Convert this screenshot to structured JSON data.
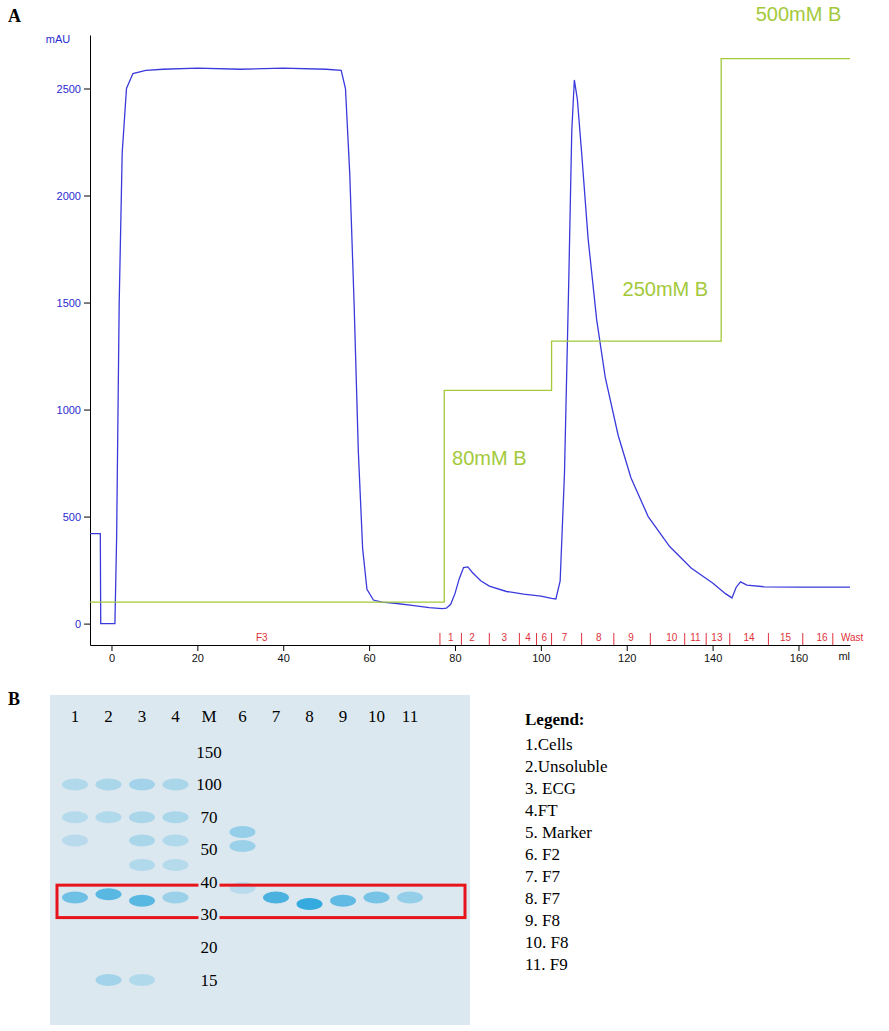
{
  "panels": [
    "A",
    "B"
  ],
  "chart_data": {
    "type": "line",
    "ylabel": "mAU",
    "xlabel": "ml",
    "xlim": [
      -5,
      172
    ],
    "xticks": [
      0,
      20,
      40,
      60,
      80,
      100,
      120,
      140,
      160
    ],
    "ylim": [
      -100,
      2750
    ],
    "yticks": [
      0,
      500,
      1000,
      1500,
      2000,
      2500
    ],
    "grid": false,
    "series": [
      {
        "color": "#3a3adc",
        "line_style": "solid",
        "x": [
          -5,
          -2.6,
          -2.5,
          0.8,
          1.2,
          1.8,
          2.5,
          3.5,
          5,
          8,
          12,
          20,
          30,
          40,
          50,
          53.5,
          54.5,
          55.5,
          56.5,
          57.5,
          58.5,
          59.5,
          61,
          63,
          66,
          70,
          74,
          77,
          78,
          79,
          80,
          81,
          82,
          83,
          84,
          86,
          88,
          92,
          96,
          100,
          102.5,
          103.5,
          104.5,
          105.5,
          106.5,
          107.2,
          107.8,
          108.5,
          109.5,
          111,
          113,
          115,
          118,
          121,
          125,
          130,
          135,
          140,
          143,
          144.5,
          145.5,
          146.5,
          148,
          152,
          160,
          172
        ],
        "values": [
          420,
          420,
          0,
          0,
          400,
          1500,
          2200,
          2500,
          2570,
          2585,
          2590,
          2595,
          2590,
          2595,
          2590,
          2585,
          2500,
          2100,
          1500,
          800,
          350,
          160,
          110,
          100,
          95,
          85,
          75,
          70,
          72,
          90,
          140,
          210,
          262,
          265,
          240,
          200,
          175,
          150,
          138,
          128,
          118,
          115,
          200,
          700,
          1600,
          2300,
          2540,
          2450,
          2200,
          1800,
          1420,
          1150,
          880,
          680,
          500,
          360,
          260,
          190,
          140,
          120,
          170,
          195,
          180,
          172,
          170,
          170
        ]
      },
      {
        "color": "#a3c93a",
        "line_style": "solid",
        "x": [
          -5,
          77.5,
          77.5,
          102.5,
          102.5,
          142,
          142,
          172
        ],
        "values": [
          100,
          100,
          1090,
          1090,
          1320,
          1320,
          2640,
          2640
        ]
      }
    ],
    "annotations": [
      {
        "text": "80mM B",
        "x": 88,
        "y": 765
      },
      {
        "text": "250mM B",
        "x": 129,
        "y": 1555
      },
      {
        "text": "500mM B",
        "x": 160,
        "y": 2840
      }
    ],
    "fractions": {
      "color": "#e0303a",
      "labels": [
        "F3",
        "1",
        "2",
        "3",
        "4",
        "6",
        "7",
        "8",
        "9",
        "10",
        "11",
        "13",
        "14",
        "15",
        "16",
        "Wast"
      ],
      "x": [
        35,
        79,
        84,
        91.5,
        97,
        100.8,
        105.5,
        113.5,
        121,
        130.5,
        136,
        141,
        148.5,
        157,
        165.5,
        172.5
      ],
      "edges": [
        76.5,
        81.5,
        88,
        95,
        99,
        102.5,
        109.5,
        117,
        125.5,
        133.5,
        138.5,
        144,
        153,
        161,
        168
      ]
    }
  },
  "gel": {
    "markers": [
      150,
      100,
      70,
      50,
      40,
      30,
      20,
      15
    ],
    "marker_lane": 4,
    "band_color": "#35aade",
    "highlight": [
      29,
      39
    ],
    "highlight_color": "#e8141c",
    "lanes": [
      {
        "label": "1",
        "bands": [
          {
            "kda": 35,
            "intensity": 0.6
          },
          {
            "kda": 100,
            "intensity": 0.15
          },
          {
            "kda": 70,
            "intensity": 0.12
          },
          {
            "kda": 55,
            "intensity": 0.1
          }
        ]
      },
      {
        "label": "2",
        "bands": [
          {
            "kda": 36,
            "intensity": 0.75
          },
          {
            "kda": 100,
            "intensity": 0.2
          },
          {
            "kda": 70,
            "intensity": 0.15
          },
          {
            "kda": 15,
            "intensity": 0.25
          }
        ]
      },
      {
        "label": "3",
        "bands": [
          {
            "kda": 34,
            "intensity": 0.75
          },
          {
            "kda": 100,
            "intensity": 0.25
          },
          {
            "kda": 70,
            "intensity": 0.2
          },
          {
            "kda": 55,
            "intensity": 0.2
          },
          {
            "kda": 45,
            "intensity": 0.15
          },
          {
            "kda": 15,
            "intensity": 0.15
          }
        ]
      },
      {
        "label": "4",
        "bands": [
          {
            "kda": 35,
            "intensity": 0.3
          },
          {
            "kda": 100,
            "intensity": 0.2
          },
          {
            "kda": 70,
            "intensity": 0.2
          },
          {
            "kda": 55,
            "intensity": 0.15
          },
          {
            "kda": 45,
            "intensity": 0.12
          }
        ]
      },
      {
        "label": "M",
        "bands": []
      },
      {
        "label": "6",
        "bands": [
          {
            "kda": 60,
            "intensity": 0.35
          },
          {
            "kda": 52,
            "intensity": 0.3
          },
          {
            "kda": 38,
            "intensity": 0.1
          }
        ]
      },
      {
        "label": "7",
        "bands": [
          {
            "kda": 35,
            "intensity": 0.85
          }
        ]
      },
      {
        "label": "8",
        "bands": [
          {
            "kda": 33,
            "intensity": 1
          }
        ]
      },
      {
        "label": "9",
        "bands": [
          {
            "kda": 34,
            "intensity": 0.7
          }
        ]
      },
      {
        "label": "10",
        "bands": [
          {
            "kda": 35,
            "intensity": 0.55
          }
        ]
      },
      {
        "label": "11",
        "bands": [
          {
            "kda": 35,
            "intensity": 0.35
          }
        ]
      }
    ],
    "legend_title": "Legend:",
    "legend_items": [
      "1.Cells",
      "2.Unsoluble",
      "3. ECG",
      "4.FT",
      "5. Marker",
      "6. F2",
      "7. F7",
      "8. F7",
      "9. F8",
      "10. F8",
      "11. F9"
    ]
  }
}
